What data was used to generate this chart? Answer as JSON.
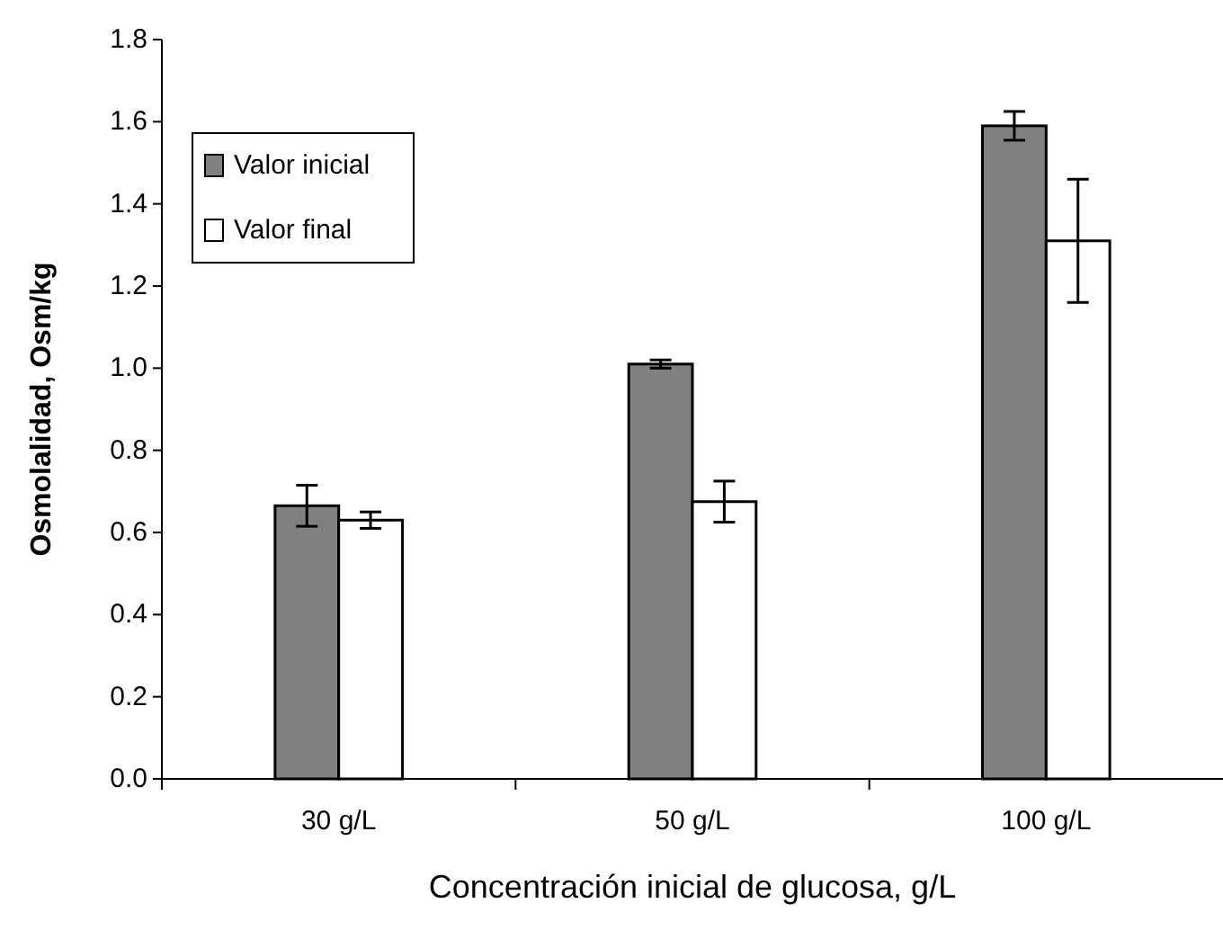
{
  "chart_data": {
    "type": "bar",
    "xlabel": "Concentración inicial de glucosa, g/L",
    "ylabel": "Osmolalidad, Osm/kg",
    "categories": [
      "30 g/L",
      "50 g/L",
      "100 g/L"
    ],
    "series": [
      {
        "name": "Valor inicial",
        "color": "#808080",
        "values": [
          0.665,
          1.01,
          1.59
        ],
        "errors": [
          0.05,
          0.01,
          0.035
        ]
      },
      {
        "name": "Valor final",
        "color": "#ffffff",
        "values": [
          0.63,
          0.675,
          1.31
        ],
        "errors": [
          0.02,
          0.05,
          0.15
        ]
      }
    ],
    "ylim": [
      0,
      1.8
    ],
    "yticks": [
      {
        "value": 0,
        "label": "0.0"
      },
      {
        "value": 0.2,
        "label": "0.2"
      },
      {
        "value": 0.4,
        "label": "0.4"
      },
      {
        "value": 0.6,
        "label": "0.6"
      },
      {
        "value": 0.8,
        "label": "0.8"
      },
      {
        "value": 1.0,
        "label": "1.0"
      },
      {
        "value": 1.2,
        "label": "1.2"
      },
      {
        "value": 1.4,
        "label": "1.4"
      },
      {
        "value": 1.6,
        "label": "1.6"
      },
      {
        "value": 1.8,
        "label": "1.8"
      }
    ],
    "grid": false,
    "legend": "top left"
  }
}
